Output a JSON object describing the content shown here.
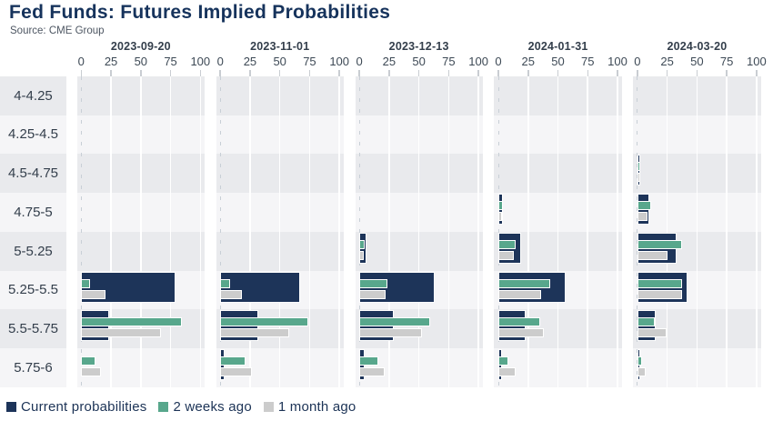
{
  "title": "Fed Funds: Futures Implied Probabilities",
  "subtitle": "Source: CME Group",
  "chart_data": {
    "type": "bar",
    "orientation": "horizontal",
    "title": "Fed Funds: Futures Implied Probabilities",
    "source": "Source: CME Group",
    "categories": [
      "4-4.25",
      "4.25-4.5",
      "4.5-4.75",
      "4.75-5",
      "5-5.25",
      "5.25-5.5",
      "5.5-5.75",
      "5.75-6"
    ],
    "x_ticks": [
      0,
      25,
      50,
      75,
      100
    ],
    "xlim": [
      0,
      100
    ],
    "grid": "vertical-white-lines-on-striped-rows",
    "legend_position": "bottom-left",
    "series_names": [
      "Current probabilities",
      "2 weeks ago",
      "1 month ago"
    ],
    "series_colors": [
      "#1d3459",
      "#58a78c",
      "#cccccc"
    ],
    "panels": [
      {
        "date": "2023-09-20",
        "series": [
          {
            "name": "Current probabilities",
            "values": [
              0,
              0,
              0,
              0,
              0,
              78,
              22,
              0
            ]
          },
          {
            "name": "2 weeks ago",
            "values": [
              0,
              0,
              0,
              0,
              0,
              6,
              83,
              11
            ]
          },
          {
            "name": "1 month ago",
            "values": [
              0,
              0,
              0,
              0,
              0,
              19,
              66,
              15
            ]
          }
        ]
      },
      {
        "date": "2023-11-01",
        "series": [
          {
            "name": "Current probabilities",
            "values": [
              0,
              0,
              0,
              0,
              0,
              66,
              31,
              2.5
            ]
          },
          {
            "name": "2 weeks ago",
            "values": [
              0,
              0,
              0,
              0,
              0,
              7,
              73,
              20
            ]
          },
          {
            "name": "1 month ago",
            "values": [
              0,
              0,
              0,
              0,
              0,
              17,
              57,
              25
            ]
          }
        ]
      },
      {
        "date": "2023-12-13",
        "series": [
          {
            "name": "Current probabilities",
            "values": [
              0,
              0,
              0,
              0,
              5,
              62,
              28,
              3
            ]
          },
          {
            "name": "2 weeks ago",
            "values": [
              0,
              0,
              0,
              0,
              3,
              22,
              58,
              15
            ]
          },
          {
            "name": "1 month ago",
            "values": [
              0,
              0,
              0,
              0,
              2.5,
              21,
              51,
              20
            ]
          }
        ]
      },
      {
        "date": "2024-01-31",
        "series": [
          {
            "name": "Current probabilities",
            "values": [
              0,
              0,
              0,
              2.5,
              18,
              55,
              22,
              2
            ]
          },
          {
            "name": "2 weeks ago",
            "values": [
              0,
              0,
              0,
              2.5,
              13.5,
              42,
              34,
              7
            ]
          },
          {
            "name": "1 month ago",
            "values": [
              0,
              0,
              0,
              2,
              11.5,
              35,
              37,
              13
            ]
          }
        ]
      },
      {
        "date": "2024-03-20",
        "series": [
          {
            "name": "Current probabilities",
            "values": [
              0,
              0,
              1,
              9,
              32,
              41,
              14,
              1
            ]
          },
          {
            "name": "2 weeks ago",
            "values": [
              0,
              0,
              1.5,
              10.5,
              36,
              36,
              13,
              3
            ]
          },
          {
            "name": "1 month ago",
            "values": [
              0,
              0,
              1,
              7.5,
              24,
              36,
              23,
              6
            ]
          }
        ]
      }
    ],
    "style": {
      "stripe_dark": "#e9eaed",
      "stripe_light": "#f5f5f7"
    }
  },
  "legend": {
    "items": [
      "Current probabilities",
      "2 weeks ago",
      "1 month ago"
    ]
  }
}
